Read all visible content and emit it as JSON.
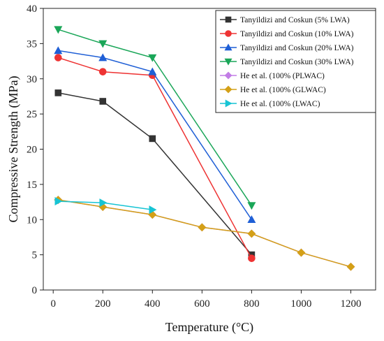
{
  "chart_data": {
    "type": "line",
    "title": "",
    "xlabel": "Temperature (°C)",
    "ylabel": "Compressive Strength (MPa)",
    "xlim": [
      -40,
      1300
    ],
    "ylim": [
      0,
      40
    ],
    "xticks": [
      0,
      200,
      400,
      600,
      800,
      1000,
      1200
    ],
    "yticks": [
      0,
      5,
      10,
      15,
      20,
      25,
      30,
      35,
      40
    ],
    "grid": false,
    "legend_position": "top-right",
    "series": [
      {
        "name": "Tanyildizi and Coskun (5% LWA)",
        "color": "#333333",
        "marker": "square",
        "x": [
          20,
          200,
          400,
          800
        ],
        "y": [
          28.0,
          26.8,
          21.5,
          5.0
        ]
      },
      {
        "name": "Tanyildizi and Coskun (10% LWA)",
        "color": "#ee3333",
        "marker": "circle",
        "x": [
          20,
          200,
          400,
          800
        ],
        "y": [
          33.0,
          31.0,
          30.5,
          4.5
        ]
      },
      {
        "name": "Tanyildizi and Coskun (20% LWA)",
        "color": "#1f5fd6",
        "marker": "triangle-up",
        "x": [
          20,
          200,
          400,
          800
        ],
        "y": [
          34.0,
          33.0,
          31.0,
          10.0
        ]
      },
      {
        "name": "Tanyildizi and Coskun (30% LWA)",
        "color": "#1aa658",
        "marker": "triangle-down",
        "x": [
          20,
          200,
          400,
          800
        ],
        "y": [
          37.0,
          35.0,
          33.0,
          12.0
        ]
      },
      {
        "name": "He et al. (100% (PLWAC)",
        "color": "#c27de6",
        "marker": "diamond",
        "x": [
          20,
          200,
          400,
          600,
          800,
          1000,
          1200
        ],
        "y": [
          12.8,
          11.8,
          10.7,
          8.9,
          8.0,
          5.3,
          3.3
        ]
      },
      {
        "name": "He et al. (100% (GLWAC)",
        "color": "#d4a017",
        "marker": "diamond",
        "x": [
          20,
          200,
          400,
          600,
          800,
          1000,
          1200
        ],
        "y": [
          12.8,
          11.8,
          10.7,
          8.9,
          8.0,
          5.3,
          3.3
        ]
      },
      {
        "name": "He et al. (100% (LWAC)",
        "color": "#17c4d4",
        "marker": "triangle-right",
        "x": [
          20,
          200,
          400
        ],
        "y": [
          12.6,
          12.4,
          11.4
        ]
      }
    ]
  }
}
